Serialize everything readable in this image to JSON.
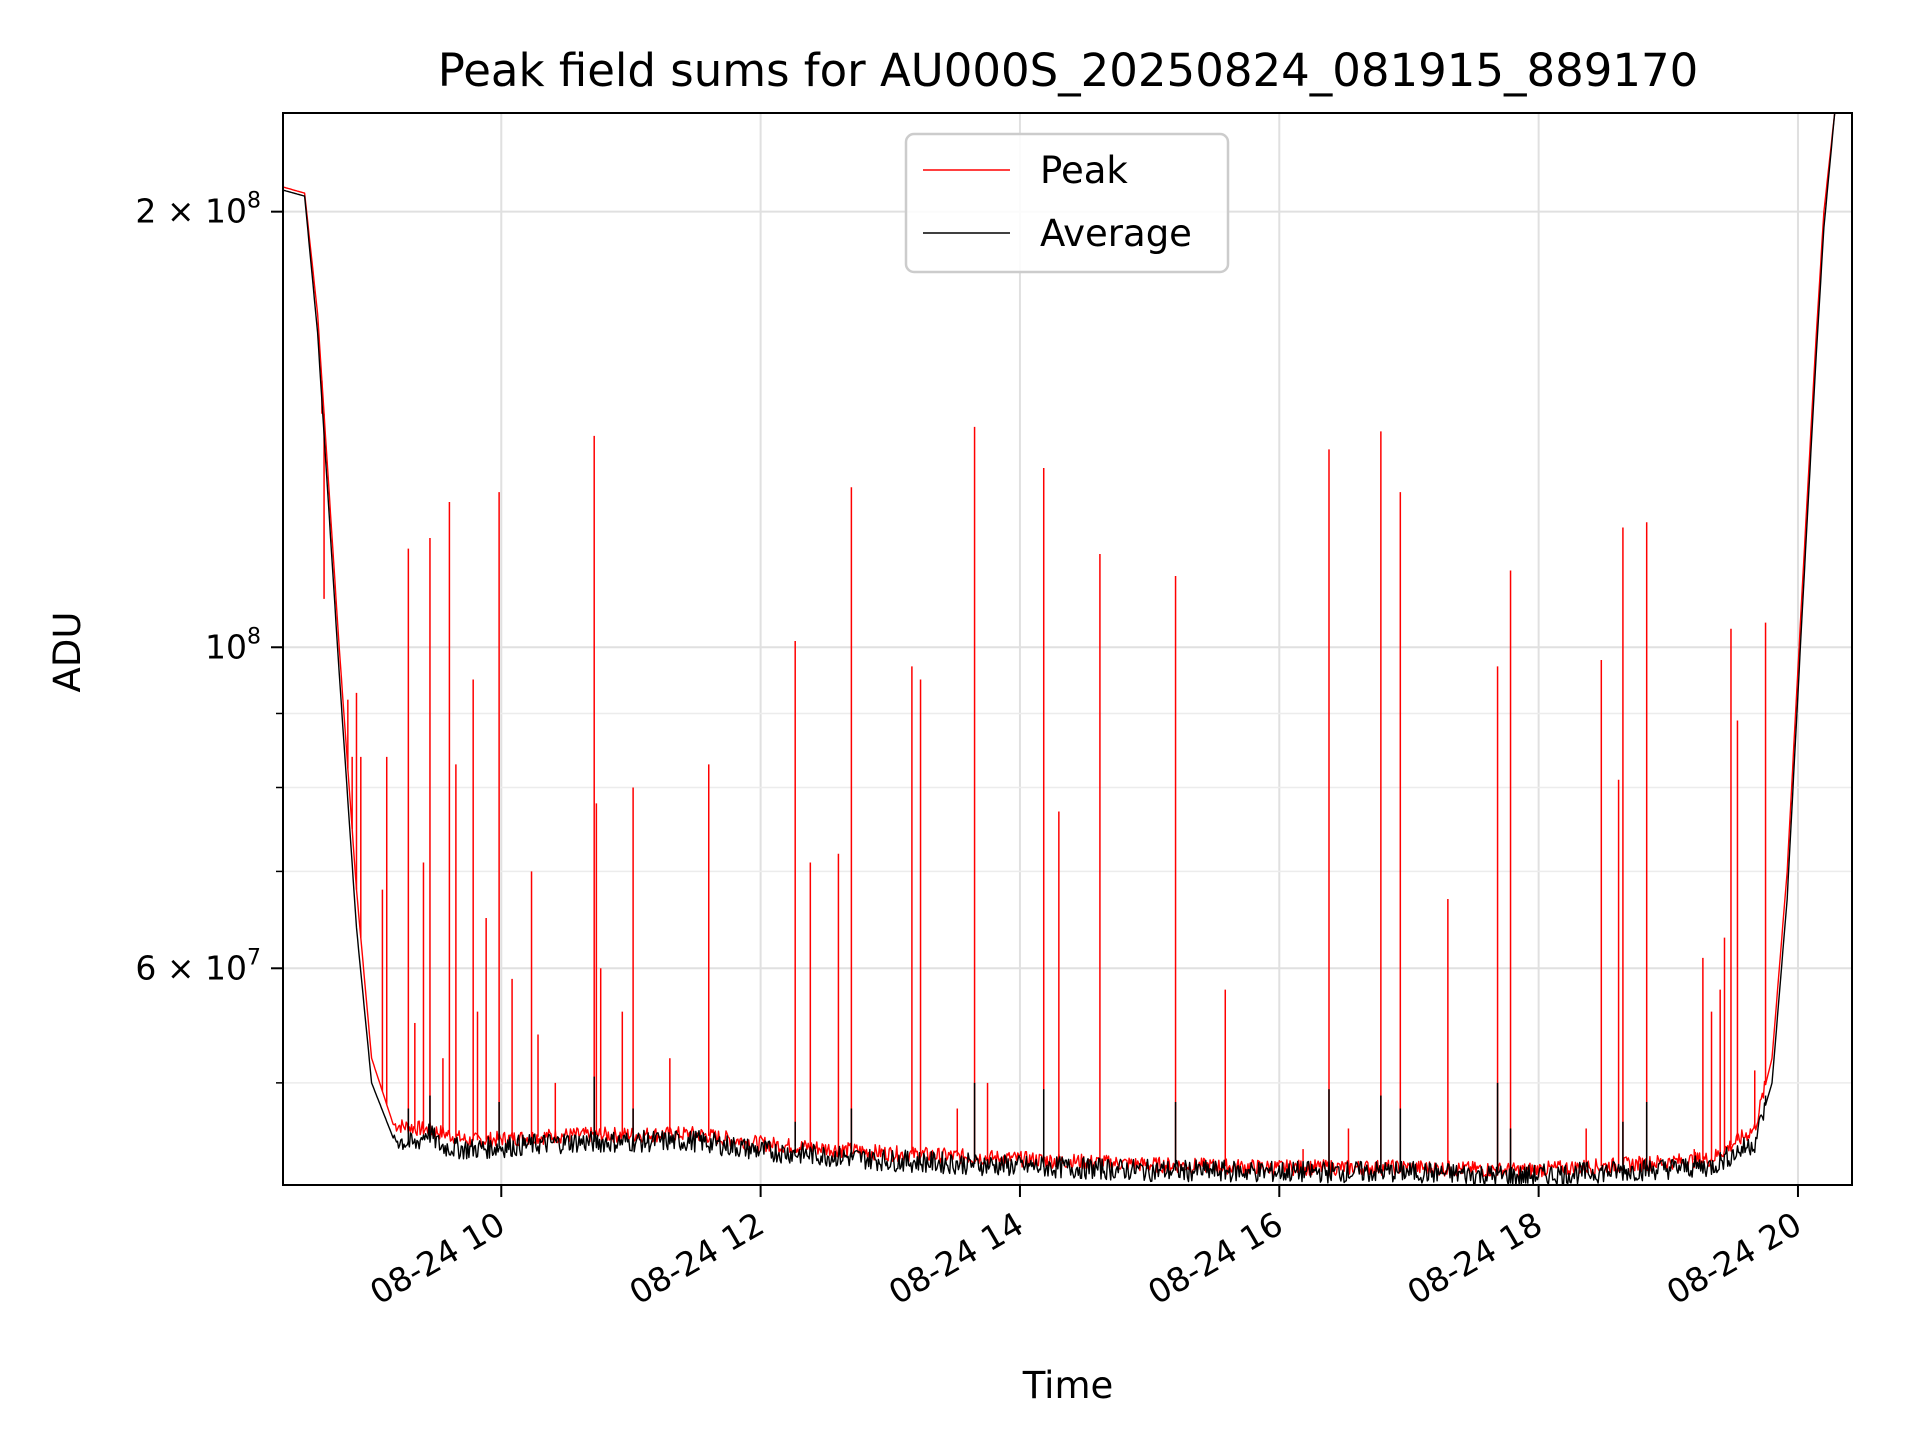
{
  "chart_data": {
    "type": "line",
    "title": "Peak field sums for AU000S_20250824_081915_889170",
    "xlabel": "Time",
    "ylabel": "ADU",
    "yscale": "log",
    "xlim": [
      "2025-08-24 08:19",
      "2025-08-24 20:25"
    ],
    "ylim": [
      42500000,
      234000000
    ],
    "grid": true,
    "legend_position": "upper center",
    "x_ticks": [
      {
        "value": "2025-08-24 10:00",
        "label": "08-24 10"
      },
      {
        "value": "2025-08-24 12:00",
        "label": "08-24 12"
      },
      {
        "value": "2025-08-24 14:00",
        "label": "08-24 14"
      },
      {
        "value": "2025-08-24 16:00",
        "label": "08-24 16"
      },
      {
        "value": "2025-08-24 18:00",
        "label": "08-24 18"
      },
      {
        "value": "2025-08-24 20:00",
        "label": "08-24 20"
      }
    ],
    "y_ticks_major": [
      {
        "value": 60000000,
        "mantissa": "6",
        "times": "×",
        "base": "10",
        "exp": "7"
      },
      {
        "value": 100000000,
        "mantissa": "",
        "times": "",
        "base": "10",
        "exp": "8"
      },
      {
        "value": 200000000,
        "mantissa": "2",
        "times": "×",
        "base": "10",
        "exp": "8"
      }
    ],
    "y_ticks_minor": [
      50000000,
      70000000,
      80000000,
      90000000
    ],
    "series": [
      {
        "name": "Peak",
        "color": "#ff0000",
        "baseline": [
          [
            "2025-08-24 08:19",
            208000000
          ],
          [
            "2025-08-24 08:29",
            206000000
          ],
          [
            "2025-08-24 08:35",
            170000000
          ],
          [
            "2025-08-24 08:45",
            100000000
          ],
          [
            "2025-08-24 08:53",
            68000000
          ],
          [
            "2025-08-24 09:00",
            52000000
          ],
          [
            "2025-08-24 09:10",
            46800000
          ],
          [
            "2025-08-24 09:30",
            46300000
          ],
          [
            "2025-08-24 09:45",
            45600000
          ],
          [
            "2025-08-24 10:30",
            46000000
          ],
          [
            "2025-08-24 11:30",
            46100000
          ],
          [
            "2025-08-24 12:00",
            45400000
          ],
          [
            "2025-08-24 13:00",
            44700000
          ],
          [
            "2025-08-24 14:00",
            44300000
          ],
          [
            "2025-08-24 15:00",
            43900000
          ],
          [
            "2025-08-24 16:00",
            43700000
          ],
          [
            "2025-08-24 17:00",
            43700000
          ],
          [
            "2025-08-24 17:50",
            43500000
          ],
          [
            "2025-08-24 18:30",
            43800000
          ],
          [
            "2025-08-24 19:20",
            44300000
          ],
          [
            "2025-08-24 19:40",
            46500000
          ],
          [
            "2025-08-24 19:48",
            52000000
          ],
          [
            "2025-08-24 19:55",
            70000000
          ],
          [
            "2025-08-24 20:02",
            110000000
          ],
          [
            "2025-08-24 20:08",
            160000000
          ],
          [
            "2025-08-24 20:12",
            200000000
          ],
          [
            "2025-08-24 20:17",
            234000000
          ]
        ],
        "spikes": [
          [
            "2025-08-24 08:37",
            145000000
          ],
          [
            "2025-08-24 08:38",
            108000000
          ],
          [
            "2025-08-24 08:49",
            92000000
          ],
          [
            "2025-08-24 08:51",
            84000000
          ],
          [
            "2025-08-24 08:53",
            93000000
          ],
          [
            "2025-08-24 08:55",
            84000000
          ],
          [
            "2025-08-24 09:05",
            68000000
          ],
          [
            "2025-08-24 09:07",
            84000000
          ],
          [
            "2025-08-24 09:17",
            117000000
          ],
          [
            "2025-08-24 09:20",
            55000000
          ],
          [
            "2025-08-24 09:24",
            71000000
          ],
          [
            "2025-08-24 09:27",
            119000000
          ],
          [
            "2025-08-24 09:33",
            52000000
          ],
          [
            "2025-08-24 09:36",
            126000000
          ],
          [
            "2025-08-24 09:39",
            83000000
          ],
          [
            "2025-08-24 09:47",
            95000000
          ],
          [
            "2025-08-24 09:49",
            56000000
          ],
          [
            "2025-08-24 09:53",
            65000000
          ],
          [
            "2025-08-24 09:59",
            128000000
          ],
          [
            "2025-08-24 10:05",
            59000000
          ],
          [
            "2025-08-24 10:14",
            70000000
          ],
          [
            "2025-08-24 10:17",
            54000000
          ],
          [
            "2025-08-24 10:25",
            50000000
          ],
          [
            "2025-08-24 10:43",
            140000000
          ],
          [
            "2025-08-24 10:44",
            78000000
          ],
          [
            "2025-08-24 10:46",
            60000000
          ],
          [
            "2025-08-24 10:56",
            56000000
          ],
          [
            "2025-08-24 11:01",
            80000000
          ],
          [
            "2025-08-24 11:18",
            52000000
          ],
          [
            "2025-08-24 11:36",
            83000000
          ],
          [
            "2025-08-24 12:16",
            101000000
          ],
          [
            "2025-08-24 12:23",
            71000000
          ],
          [
            "2025-08-24 12:36",
            72000000
          ],
          [
            "2025-08-24 12:42",
            129000000
          ],
          [
            "2025-08-24 13:10",
            97000000
          ],
          [
            "2025-08-24 13:14",
            95000000
          ],
          [
            "2025-08-24 13:31",
            48000000
          ],
          [
            "2025-08-24 13:39",
            142000000
          ],
          [
            "2025-08-24 13:45",
            50000000
          ],
          [
            "2025-08-24 14:11",
            133000000
          ],
          [
            "2025-08-24 14:18",
            77000000
          ],
          [
            "2025-08-24 14:37",
            116000000
          ],
          [
            "2025-08-24 15:12",
            112000000
          ],
          [
            "2025-08-24 15:35",
            58000000
          ],
          [
            "2025-08-24 16:11",
            45000000
          ],
          [
            "2025-08-24 16:23",
            137000000
          ],
          [
            "2025-08-24 16:32",
            46500000
          ],
          [
            "2025-08-24 16:47",
            141000000
          ],
          [
            "2025-08-24 16:56",
            128000000
          ],
          [
            "2025-08-24 17:18",
            67000000
          ],
          [
            "2025-08-24 17:41",
            97000000
          ],
          [
            "2025-08-24 17:47",
            113000000
          ],
          [
            "2025-08-24 18:22",
            46500000
          ],
          [
            "2025-08-24 18:29",
            98000000
          ],
          [
            "2025-08-24 18:37",
            81000000
          ],
          [
            "2025-08-24 18:39",
            121000000
          ],
          [
            "2025-08-24 18:50",
            122000000
          ],
          [
            "2025-08-24 19:12",
            45000000
          ],
          [
            "2025-08-24 19:16",
            61000000
          ],
          [
            "2025-08-24 19:20",
            56000000
          ],
          [
            "2025-08-24 19:24",
            58000000
          ],
          [
            "2025-08-24 19:26",
            63000000
          ],
          [
            "2025-08-24 19:29",
            103000000
          ],
          [
            "2025-08-24 19:32",
            89000000
          ],
          [
            "2025-08-24 19:40",
            51000000
          ],
          [
            "2025-08-24 19:45",
            104000000
          ]
        ]
      },
      {
        "name": "Average",
        "color": "#000000",
        "baseline": [
          [
            "2025-08-24 08:19",
            207000000
          ],
          [
            "2025-08-24 08:29",
            205000000
          ],
          [
            "2025-08-24 08:35",
            165000000
          ],
          [
            "2025-08-24 08:45",
            96000000
          ],
          [
            "2025-08-24 08:53",
            64000000
          ],
          [
            "2025-08-24 09:00",
            50000000
          ],
          [
            "2025-08-24 09:10",
            45800000
          ],
          [
            "2025-08-24 09:20",
            45300000
          ],
          [
            "2025-08-24 09:26",
            46300000
          ],
          [
            "2025-08-24 09:32",
            45200000
          ],
          [
            "2025-08-24 09:45",
            45000000
          ],
          [
            "2025-08-24 10:30",
            45500000
          ],
          [
            "2025-08-24 11:30",
            45600000
          ],
          [
            "2025-08-24 12:00",
            44900000
          ],
          [
            "2025-08-24 13:00",
            44200000
          ],
          [
            "2025-08-24 14:00",
            43800000
          ],
          [
            "2025-08-24 15:00",
            43500000
          ],
          [
            "2025-08-24 16:00",
            43400000
          ],
          [
            "2025-08-24 17:00",
            43400000
          ],
          [
            "2025-08-24 17:50",
            43100000
          ],
          [
            "2025-08-24 18:30",
            43400000
          ],
          [
            "2025-08-24 19:20",
            43800000
          ],
          [
            "2025-08-24 19:40",
            45500000
          ],
          [
            "2025-08-24 19:48",
            50000000
          ],
          [
            "2025-08-24 19:55",
            67000000
          ],
          [
            "2025-08-24 20:02",
            106000000
          ],
          [
            "2025-08-24 20:08",
            155000000
          ],
          [
            "2025-08-24 20:12",
            195000000
          ],
          [
            "2025-08-24 20:17",
            234000000
          ]
        ],
        "spikes": [
          [
            "2025-08-24 09:17",
            48000000
          ],
          [
            "2025-08-24 09:27",
            49000000
          ],
          [
            "2025-08-24 09:59",
            48500000
          ],
          [
            "2025-08-24 10:43",
            50500000
          ],
          [
            "2025-08-24 11:01",
            48000000
          ],
          [
            "2025-08-24 12:16",
            47000000
          ],
          [
            "2025-08-24 12:42",
            48000000
          ],
          [
            "2025-08-24 13:39",
            50000000
          ],
          [
            "2025-08-24 14:11",
            49500000
          ],
          [
            "2025-08-24 15:12",
            48500000
          ],
          [
            "2025-08-24 16:23",
            49500000
          ],
          [
            "2025-08-24 16:47",
            49000000
          ],
          [
            "2025-08-24 16:56",
            48000000
          ],
          [
            "2025-08-24 17:41",
            50000000
          ],
          [
            "2025-08-24 17:47",
            46500000
          ],
          [
            "2025-08-24 18:39",
            47000000
          ],
          [
            "2025-08-24 18:50",
            48500000
          ],
          [
            "2025-08-24 19:45",
            49000000
          ]
        ]
      }
    ]
  }
}
